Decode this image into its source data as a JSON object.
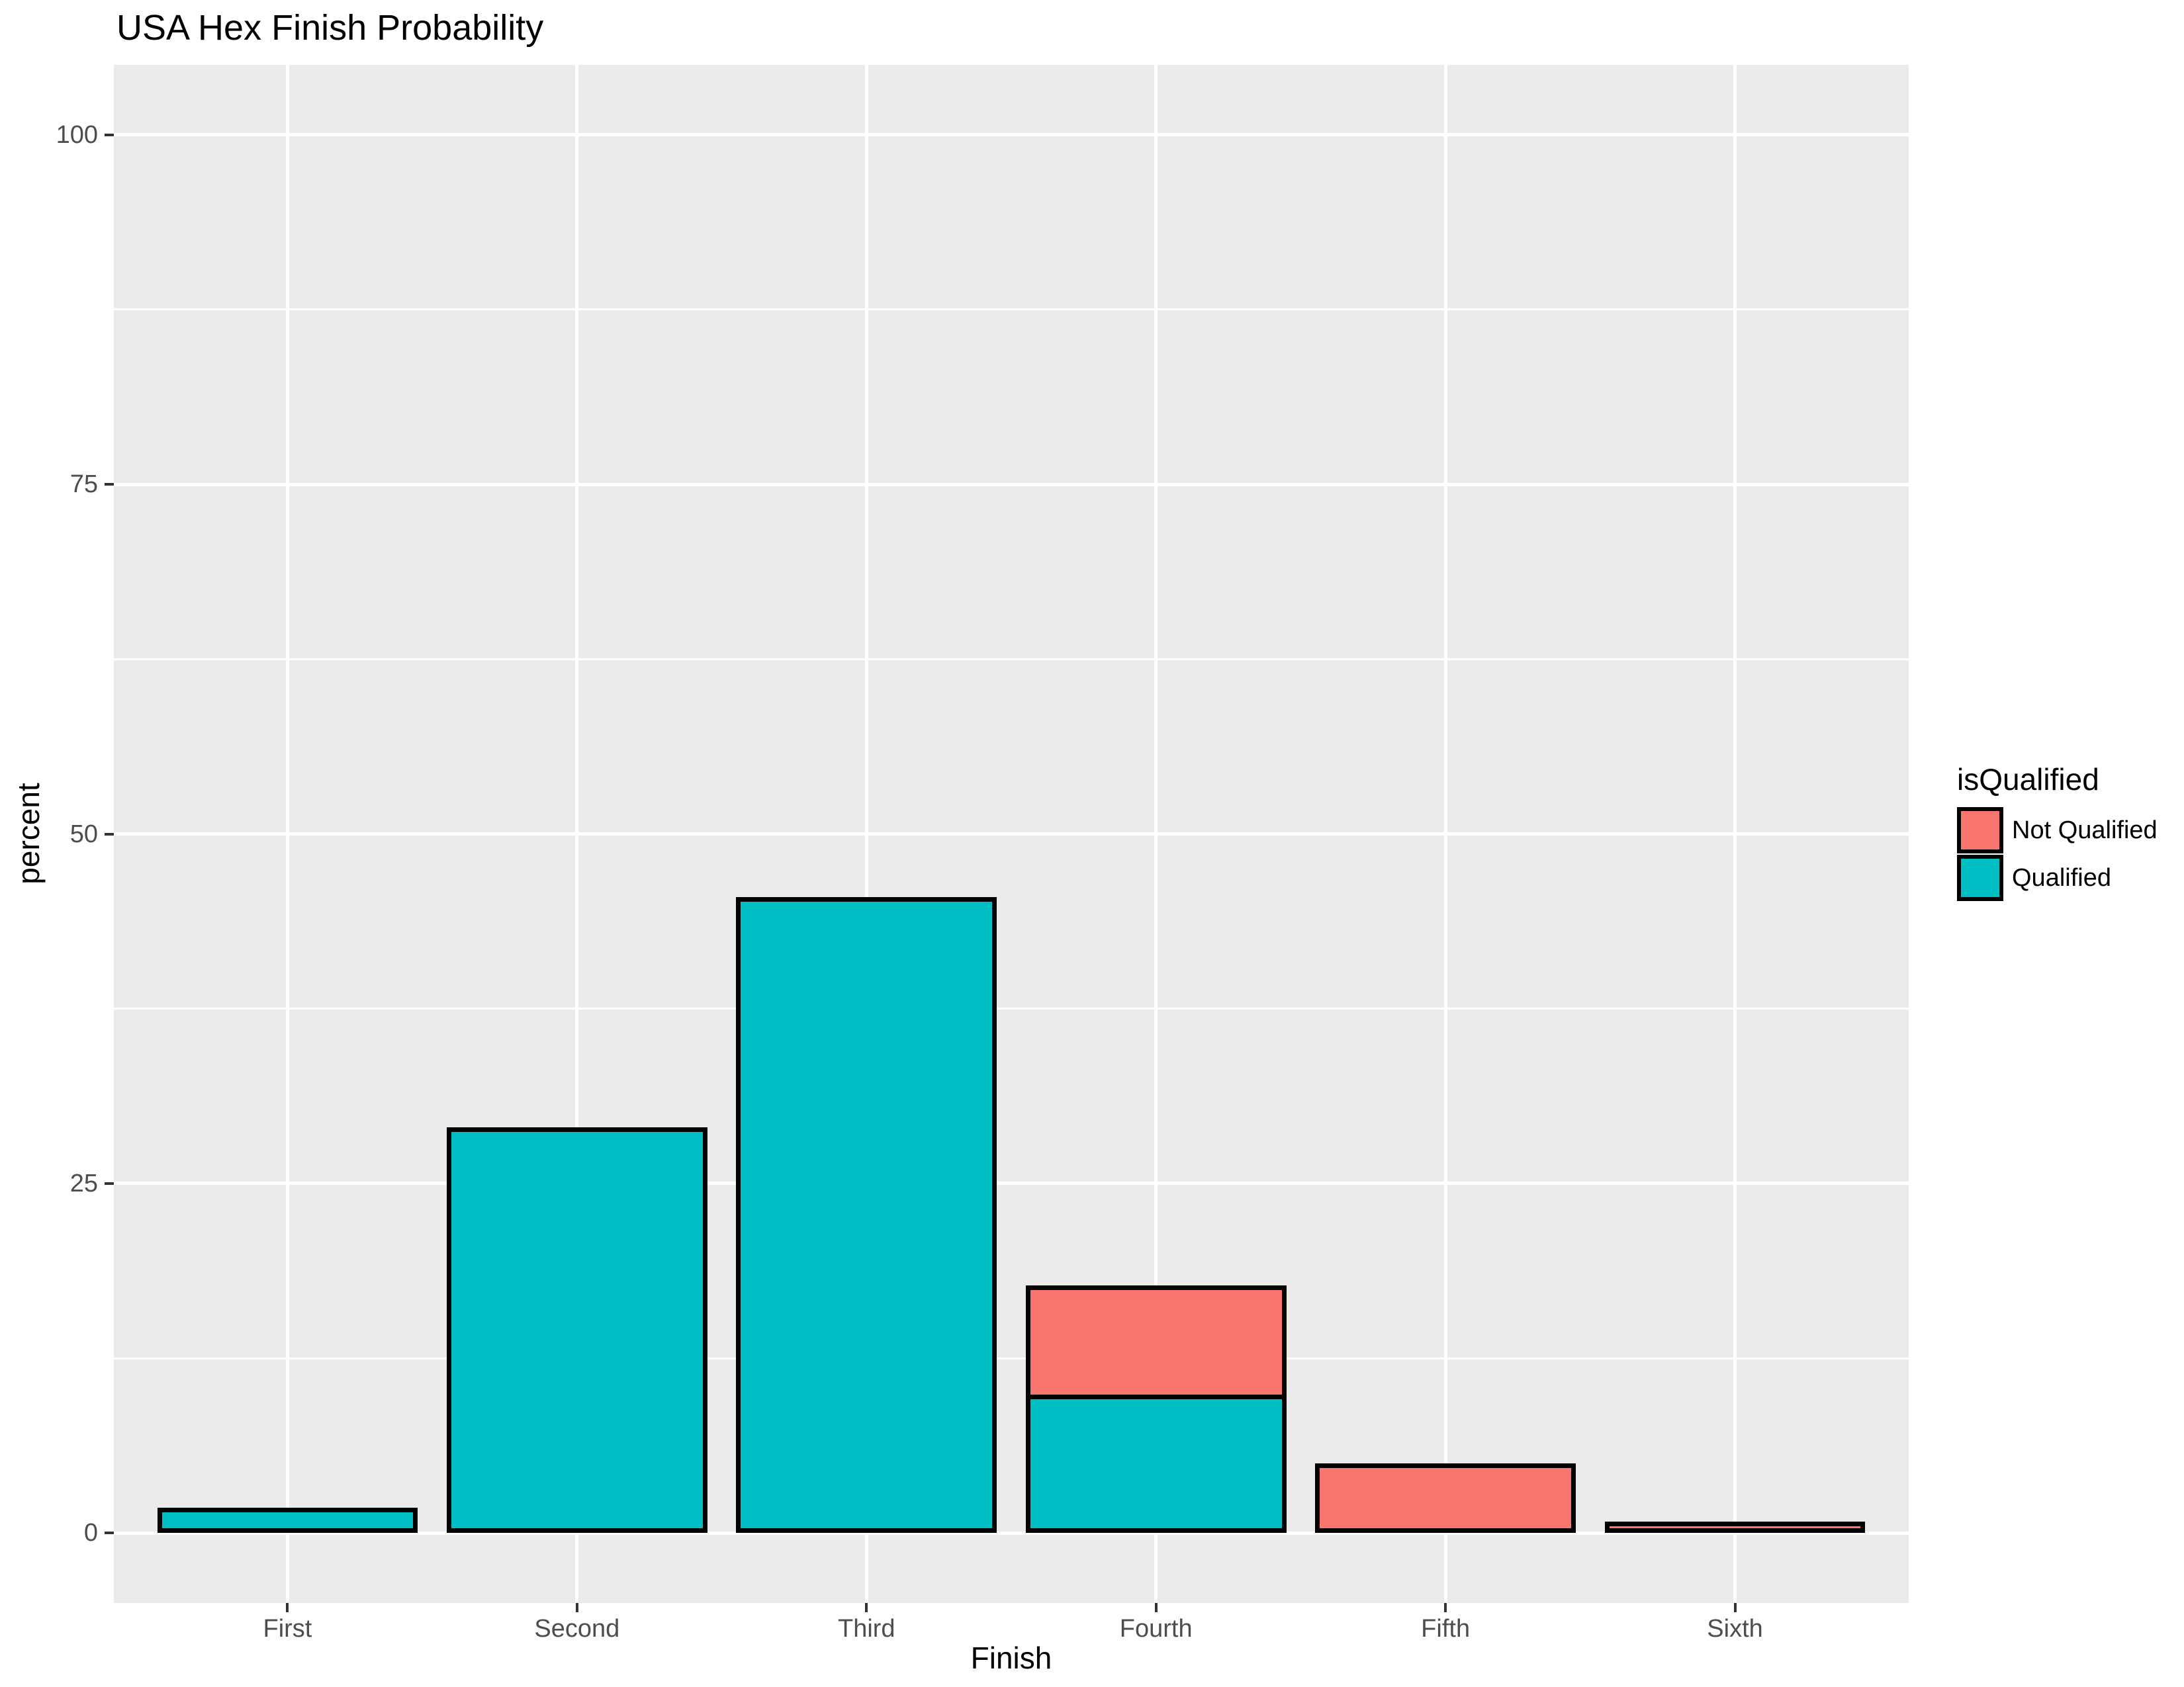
{
  "chart_data": {
    "type": "bar",
    "stacked": true,
    "title": "USA Hex Finish Probability",
    "xlabel": "Finish",
    "ylabel": "percent",
    "categories": [
      "First",
      "Second",
      "Third",
      "Fourth",
      "Fifth",
      "Sixth"
    ],
    "series": [
      {
        "name": "Not Qualified",
        "color": "#F8766D",
        "values": [
          0,
          0,
          0,
          7.8,
          5.0,
          0.8
        ]
      },
      {
        "name": "Qualified",
        "color": "#00BFC4",
        "values": [
          1.8,
          29.0,
          45.5,
          9.9,
          0,
          0
        ]
      }
    ],
    "stack_order_bottom_to_top": [
      "Qualified",
      "Not Qualified"
    ],
    "y_ticks": [
      0,
      25,
      50,
      75,
      100
    ],
    "y_minor_ticks": [
      12.5,
      37.5,
      62.5,
      87.5
    ],
    "ylim": [
      0,
      100
    ],
    "grid": true,
    "legend": {
      "title": "isQualified",
      "position": "right",
      "entries": [
        {
          "label": "Not Qualified",
          "color": "#F8766D"
        },
        {
          "label": "Qualified",
          "color": "#00BFC4"
        }
      ]
    },
    "colors": {
      "panel_background": "#EBEBEB",
      "gridline": "#FFFFFF",
      "bar_border": "#000000",
      "axis_text": "#4D4D4D",
      "tick_mark": "#333333",
      "title_text": "#000000"
    }
  }
}
